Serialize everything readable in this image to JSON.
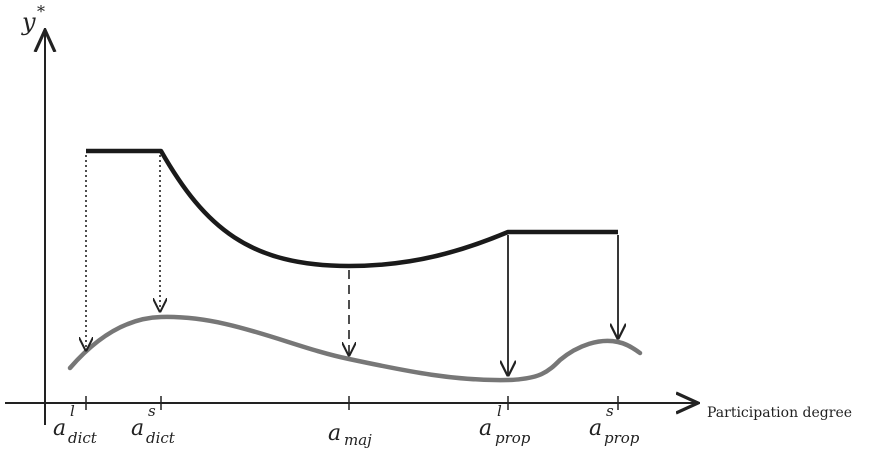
{
  "diagram": {
    "y_axis": {
      "symbol": "y",
      "superscript": "*"
    },
    "x_axis": {
      "label": "Participation degree"
    },
    "ticks": [
      {
        "id": "a-dict-l",
        "base": "a",
        "sup": "l",
        "sub": "dict"
      },
      {
        "id": "a-dict-s",
        "base": "a",
        "sup": "s",
        "sub": "dict"
      },
      {
        "id": "a-maj",
        "base": "a",
        "sup": "",
        "sub": "maj"
      },
      {
        "id": "a-prop-l",
        "base": "a",
        "sup": "l",
        "sub": "prop"
      },
      {
        "id": "a-prop-s",
        "base": "a",
        "sup": "s",
        "sub": "prop"
      }
    ],
    "colors": {
      "axis": "#222222",
      "upper_curve": "#1a1a1a",
      "lower_curve": "#777777",
      "arrow": "#222222"
    }
  }
}
